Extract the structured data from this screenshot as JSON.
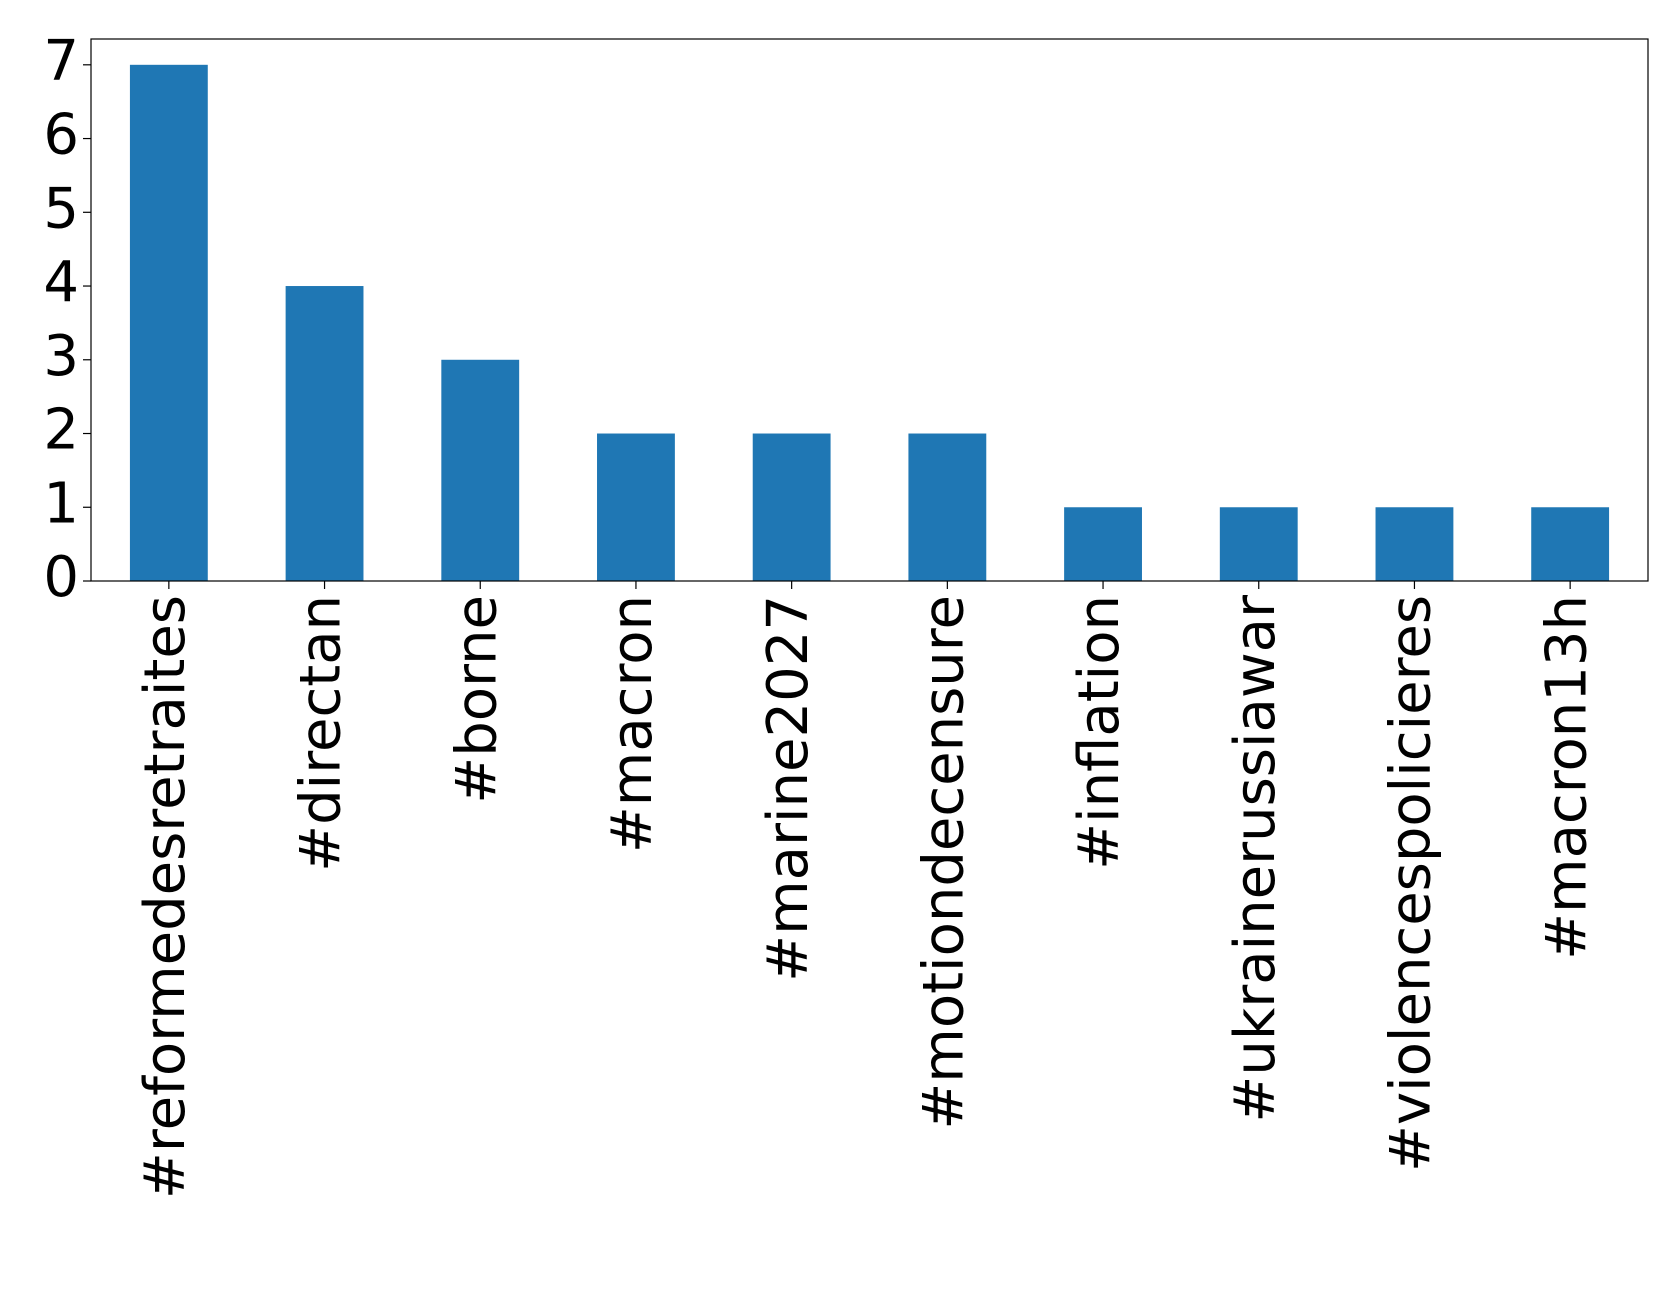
{
  "chart_data": {
    "type": "bar",
    "categories": [
      "#reformedesretraites",
      "#directan",
      "#borne",
      "#macron",
      "#marine2027",
      "#motiondecensure",
      "#inflation",
      "#ukrainerussiawar",
      "#violencespolicieres",
      "#macron13h"
    ],
    "values": [
      7,
      4,
      3,
      2,
      2,
      2,
      1,
      1,
      1,
      1
    ],
    "color": "#1f77b4",
    "ylim": [
      0,
      7.35
    ],
    "yticks": [
      0,
      1,
      2,
      3,
      4,
      5,
      6,
      7
    ],
    "grid": false
  }
}
